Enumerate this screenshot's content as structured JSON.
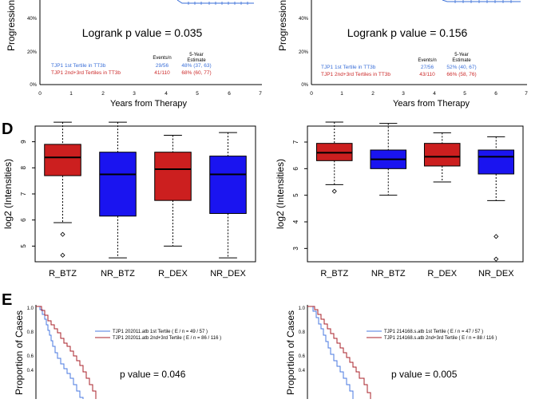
{
  "panel_letters": {
    "d": "D",
    "e": "E"
  },
  "row_c": {
    "left": {
      "ylabel": "Progression",
      "yticks": [
        "40%",
        "20%",
        "0%"
      ],
      "xticks": [
        "0",
        "1",
        "2",
        "3",
        "4",
        "5",
        "6",
        "7"
      ],
      "xlabel": "Years from Therapy",
      "pvalue": "Logrank p value = 0.035",
      "head_events": "Events/n",
      "head_est1": "5-Year",
      "head_est2": "Estimate",
      "rows": [
        {
          "label": "TJP1 1st Tertile in TT3b",
          "events": "29/56",
          "estimate": "48% (37, 63)",
          "color": "#3a6fd8"
        },
        {
          "label": "TJP1 2nd+3rd Tertiles in TT3b",
          "events": "41/110",
          "estimate": "68% (60, 77)",
          "color": "#cc2a2a"
        }
      ]
    },
    "right": {
      "ylabel": "Progression",
      "yticks": [
        "40%",
        "20%",
        "0%"
      ],
      "xticks": [
        "0",
        "1",
        "2",
        "3",
        "4",
        "5",
        "6",
        "7"
      ],
      "xlabel": "Years from Therapy",
      "pvalue": "Logrank p value = 0.156",
      "head_events": "Events/n",
      "head_est1": "5-Year",
      "head_est2": "Estimate",
      "rows": [
        {
          "label": "TJP1 1st Tertile in TT3b",
          "events": "27/56",
          "estimate": "52% (40, 67)",
          "color": "#3a6fd8"
        },
        {
          "label": "TJP1 2nd+3rd Tertiles in TT3b",
          "events": "43/110",
          "estimate": "66% (58, 76)",
          "color": "#cc2a2a"
        }
      ]
    }
  },
  "row_e": {
    "left": {
      "ylabel": "Proportion of Cases",
      "yticks": [
        "1.0",
        "0.8",
        "0.6",
        "0.4"
      ],
      "pvalue": "p value = 0.046",
      "legend": [
        {
          "label": "TJP1 202011.atb 1st Tertile  ( E / n = 49 / 57 )",
          "color": "#4a78e0"
        },
        {
          "label": "TJP1 202011.atb 2nd+3rd Tertile  ( E / n = 86 / 116 )",
          "color": "#a8202a"
        }
      ]
    },
    "right": {
      "ylabel": "Proportion of Cases",
      "yticks": [
        "1.0",
        "0.8",
        "0.6",
        "0.4"
      ],
      "pvalue": "p value = 0.005",
      "legend": [
        {
          "label": "TJP1 214168.s.atb 1st Tertile  ( E / n = 47 / 57 )",
          "color": "#4a78e0"
        },
        {
          "label": "TJP1 214168.s.atb 2nd+3rd Tertile  ( E / n = 88 / 116 )",
          "color": "#a8202a"
        }
      ]
    }
  },
  "chart_data": [
    {
      "type": "box",
      "ylabel": "log2 (Intensities)",
      "ylim": [
        4.4,
        9.6
      ],
      "yticks": [
        5,
        6,
        7,
        8,
        9
      ],
      "categories": [
        "R_BTZ",
        "NR_BTZ",
        "R_DEX",
        "NR_DEX"
      ],
      "colors": [
        "#cc1f1f",
        "#1a14f0",
        "#cc1f1f",
        "#1a14f0"
      ],
      "boxes": [
        {
          "wlo": 5.9,
          "q1": 7.7,
          "median": 8.4,
          "q3": 8.9,
          "whi": 9.75,
          "outliers": [
            5.45,
            4.65
          ]
        },
        {
          "wlo": 4.55,
          "q1": 6.15,
          "median": 7.75,
          "q3": 8.6,
          "whi": 9.75,
          "outliers": []
        },
        {
          "wlo": 5.0,
          "q1": 6.75,
          "median": 7.95,
          "q3": 8.6,
          "whi": 9.25,
          "outliers": []
        },
        {
          "wlo": 4.55,
          "q1": 6.25,
          "median": 7.75,
          "q3": 8.45,
          "whi": 9.35,
          "outliers": []
        }
      ]
    },
    {
      "type": "box",
      "ylabel": "log2 (Intensities)",
      "ylim": [
        2.5,
        7.6
      ],
      "yticks": [
        3,
        4,
        5,
        6,
        7
      ],
      "categories": [
        "R_BTZ",
        "NR_BTZ",
        "R_DEX",
        "NR_DEX"
      ],
      "colors": [
        "#cc1f1f",
        "#1a14f0",
        "#cc1f1f",
        "#1a14f0"
      ],
      "boxes": [
        {
          "wlo": 5.4,
          "q1": 6.3,
          "median": 6.6,
          "q3": 6.95,
          "whi": 7.75,
          "outliers": [
            5.15
          ]
        },
        {
          "wlo": 5.0,
          "q1": 6.0,
          "median": 6.35,
          "q3": 6.7,
          "whi": 7.7,
          "outliers": []
        },
        {
          "wlo": 5.5,
          "q1": 6.1,
          "median": 6.45,
          "q3": 6.95,
          "whi": 7.35,
          "outliers": []
        },
        {
          "wlo": 4.8,
          "q1": 5.8,
          "median": 6.45,
          "q3": 6.7,
          "whi": 7.2,
          "outliers": [
            3.45,
            2.6
          ]
        }
      ]
    }
  ]
}
